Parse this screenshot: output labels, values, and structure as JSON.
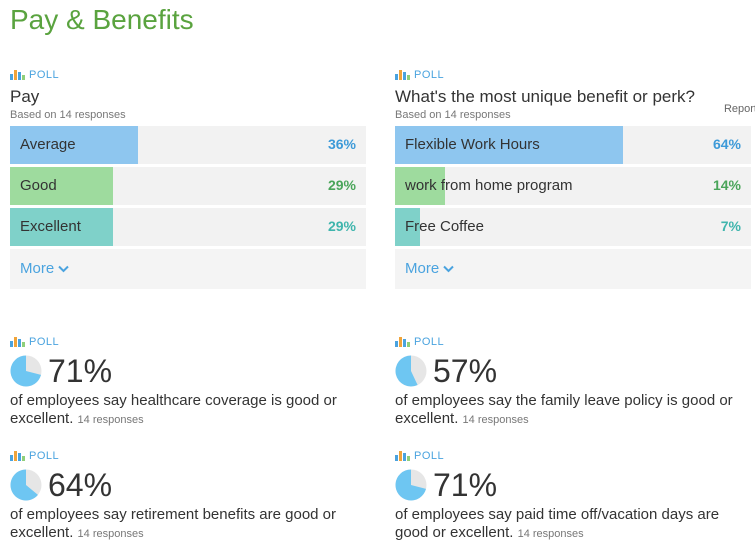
{
  "page": {
    "title": "Pay & Benefits"
  },
  "colors": {
    "blue": "#8ec6ef",
    "green": "#9edb9e",
    "teal": "#7fd1c9",
    "pct_blue": "#3d9ad8",
    "pct_green": "#4aa55a",
    "pct_teal": "#3fb5ad"
  },
  "polls": {
    "pay": {
      "tag": "POLL",
      "question": "Pay",
      "based_on": "Based on 14 responses",
      "options": [
        {
          "label": "Average",
          "percent_text": "36%",
          "percent": 36,
          "color": "#8ec6ef",
          "pct_color": "#3d9ad8"
        },
        {
          "label": "Good",
          "percent_text": "29%",
          "percent": 29,
          "color": "#9edb9e",
          "pct_color": "#4aa55a"
        },
        {
          "label": "Excellent",
          "percent_text": "29%",
          "percent": 29,
          "color": "#7fd1c9",
          "pct_color": "#3fb5ad"
        }
      ],
      "more_label": "More"
    },
    "perk": {
      "tag": "POLL",
      "question": "What's the most unique benefit or perk?",
      "based_on": "Based on 14 responses",
      "report_label": "Report",
      "options": [
        {
          "label": "Flexible Work Hours",
          "percent_text": "64%",
          "percent": 64,
          "color": "#8ec6ef",
          "pct_color": "#3d9ad8"
        },
        {
          "label": "work from home program",
          "percent_text": "14%",
          "percent": 14,
          "color": "#9edb9e",
          "pct_color": "#4aa55a"
        },
        {
          "label": "Free Coffee",
          "percent_text": "7%",
          "percent": 7,
          "color": "#7fd1c9",
          "pct_color": "#3fb5ad"
        }
      ],
      "more_label": "More"
    }
  },
  "stats": [
    {
      "tag": "POLL",
      "percent_text": "71%",
      "percent": 71,
      "description": "of employees say healthcare coverage is good or excellent.",
      "responses": "14 responses"
    },
    {
      "tag": "POLL",
      "percent_text": "57%",
      "percent": 57,
      "description": "of employees say the family leave policy is good or excellent.",
      "responses": "14 responses"
    },
    {
      "tag": "POLL",
      "percent_text": "64%",
      "percent": 64,
      "description": "of employees say retirement benefits are good or excellent.",
      "responses": "14 responses"
    },
    {
      "tag": "POLL",
      "percent_text": "71%",
      "percent": 71,
      "description": "of employees say paid time off/vacation days are good or excellent.",
      "responses": "14 responses"
    }
  ]
}
